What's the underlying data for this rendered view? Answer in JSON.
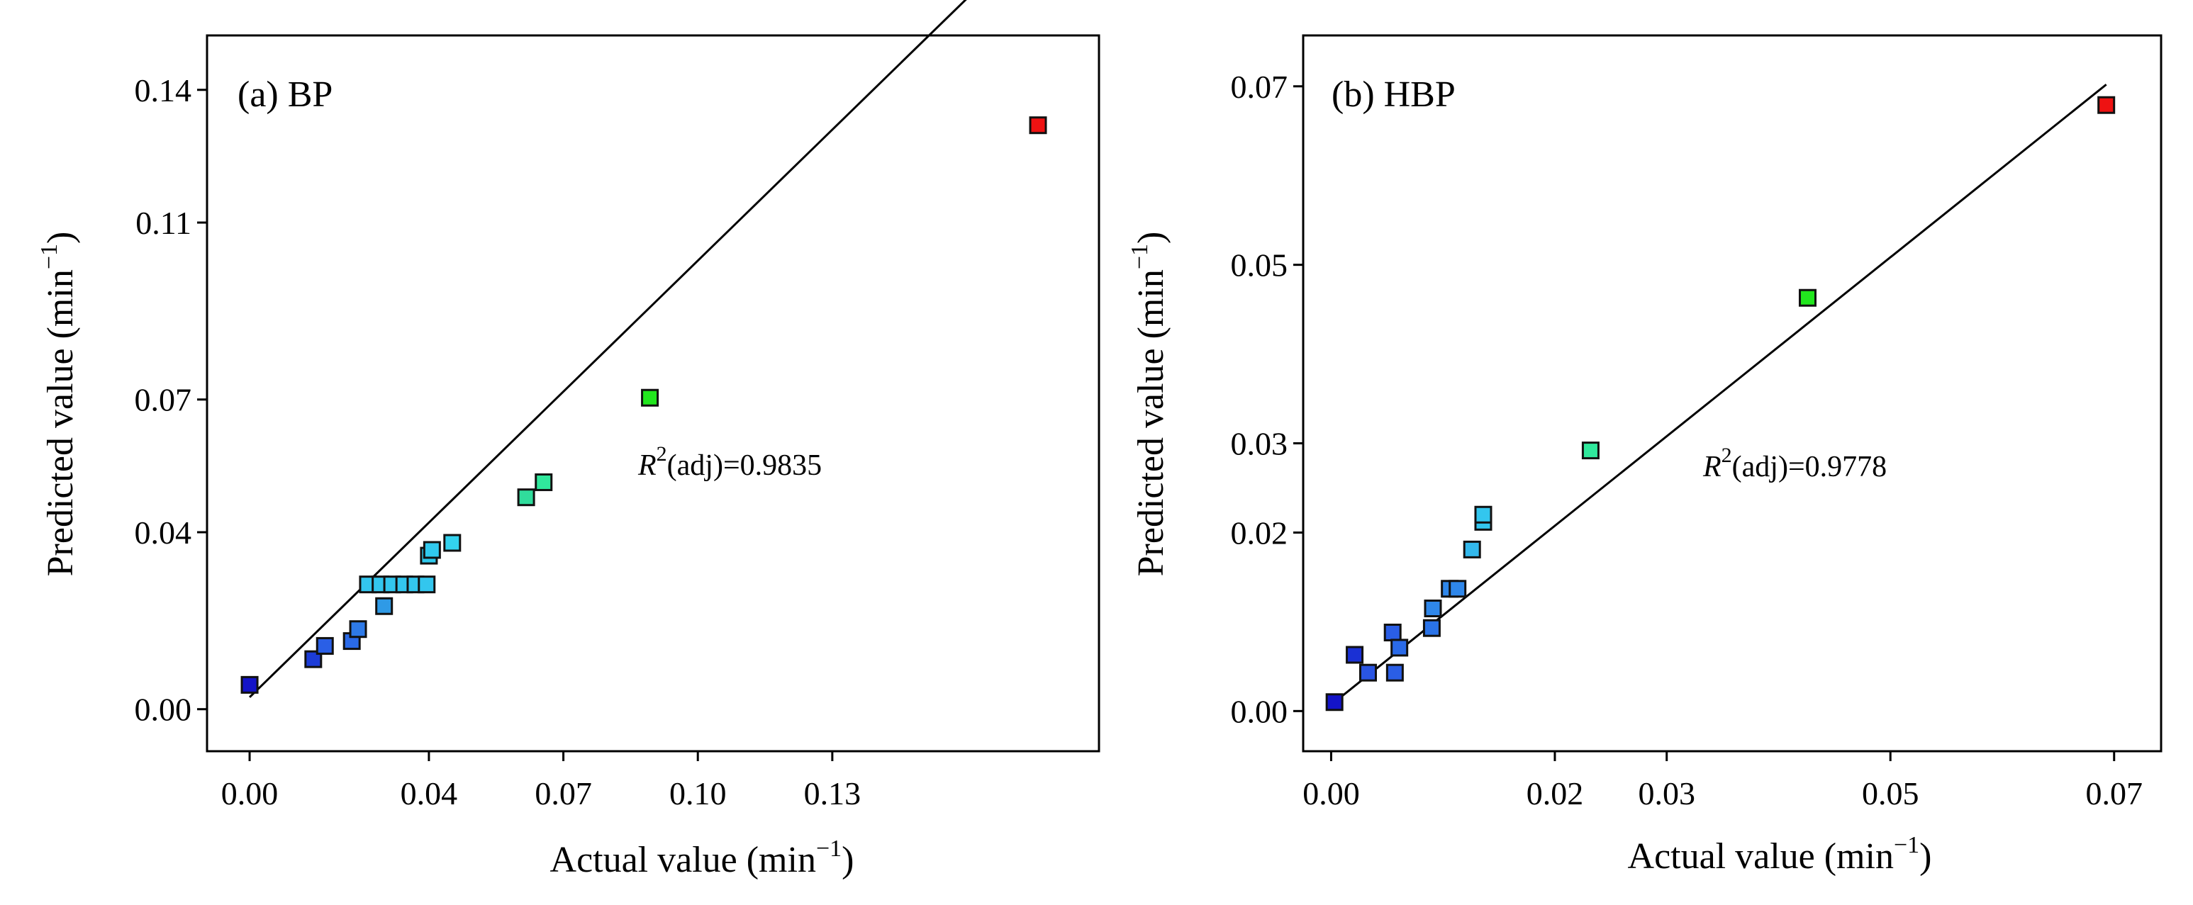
{
  "chart_data": [
    {
      "type": "scatter",
      "title": "(a) BP",
      "xlabel": "Actual value (min",
      "xlabel_sup": "−1",
      "xlabel_suffix": ")",
      "ylabel": "Predicted value (min",
      "ylabel_sup": "−1",
      "ylabel_suffix": ")",
      "x_ticks": [
        0.0,
        0.04,
        0.07,
        0.1,
        0.13
      ],
      "x_tick_labels": [
        "0.00",
        "0.04",
        "0.07",
        "0.10",
        "0.13"
      ],
      "y_ticks": [
        0.0,
        0.04,
        0.07,
        0.11,
        0.14
      ],
      "y_tick_labels": [
        "0.00",
        "0.04",
        "0.07",
        "0.11",
        "0.14"
      ],
      "xlim": [
        -0.0095,
        0.1895
      ],
      "ylim": [
        -0.0095,
        0.1523
      ],
      "annotation": {
        "r": "R",
        "sup": "2",
        "rest": "(adj)=0.9835"
      },
      "fit_line": [
        [
          0.0,
          0.0027
        ],
        [
          0.1759,
          0.1763
        ]
      ],
      "points": [
        {
          "x": 0.0,
          "y": 0.0055,
          "color": "#1414c8"
        },
        {
          "x": 0.0142,
          "y": 0.0113,
          "color": "#1c3cd8"
        },
        {
          "x": 0.0168,
          "y": 0.0143,
          "color": "#2a5fe6"
        },
        {
          "x": 0.0228,
          "y": 0.0154,
          "color": "#2a6ae8"
        },
        {
          "x": 0.0242,
          "y": 0.0181,
          "color": "#2e7ae8"
        },
        {
          "x": 0.0264,
          "y": 0.0282,
          "color": "#33c6ee"
        },
        {
          "x": 0.0292,
          "y": 0.0282,
          "color": "#33c6ee"
        },
        {
          "x": 0.03,
          "y": 0.0233,
          "color": "#2f9ae6"
        },
        {
          "x": 0.0318,
          "y": 0.0282,
          "color": "#33c6ee"
        },
        {
          "x": 0.0345,
          "y": 0.0282,
          "color": "#33c6ee"
        },
        {
          "x": 0.037,
          "y": 0.0282,
          "color": "#33c6ee"
        },
        {
          "x": 0.0395,
          "y": 0.0282,
          "color": "#33c6ee"
        },
        {
          "x": 0.04,
          "y": 0.0347,
          "color": "#2fc8ec"
        },
        {
          "x": 0.0407,
          "y": 0.036,
          "color": "#30c9ee"
        },
        {
          "x": 0.0452,
          "y": 0.0376,
          "color": "#33d2ee"
        },
        {
          "x": 0.0617,
          "y": 0.0479,
          "color": "#30dc9c"
        },
        {
          "x": 0.0656,
          "y": 0.0513,
          "color": "#30e89c"
        },
        {
          "x": 0.0893,
          "y": 0.0704,
          "color": "#22e61e"
        },
        {
          "x": 0.1759,
          "y": 0.132,
          "color": "#ee1212"
        }
      ]
    },
    {
      "type": "scatter",
      "title": "(b) HBP",
      "xlabel": "Actual value (min",
      "xlabel_sup": "−1",
      "xlabel_suffix": ")",
      "ylabel": "Predicted value (min",
      "ylabel_sup": "−1",
      "ylabel_suffix": ")",
      "x_ticks": [
        0.0,
        0.02,
        0.03,
        0.05,
        0.07
      ],
      "x_tick_labels": [
        "0.00",
        "0.02",
        "0.03",
        "0.05",
        "0.07"
      ],
      "y_ticks": [
        0.0,
        0.02,
        0.03,
        0.05,
        0.07
      ],
      "y_tick_labels": [
        "0.00",
        "0.02",
        "0.03",
        "0.05",
        "0.07"
      ],
      "xlim": [
        -0.0025,
        0.0742
      ],
      "ylim": [
        -0.0045,
        0.0757
      ],
      "annotation": {
        "r": "R",
        "sup": "2",
        "rest": "(adj)=0.9778"
      },
      "fit_line": [
        [
          0.0,
          0.0007
        ],
        [
          0.0693,
          0.0702
        ]
      ],
      "points": [
        {
          "x": 0.0003,
          "y": 0.001,
          "color": "#1414c8"
        },
        {
          "x": 0.0021,
          "y": 0.0063,
          "color": "#1a30d4"
        },
        {
          "x": 0.0033,
          "y": 0.0043,
          "color": "#2a55e2"
        },
        {
          "x": 0.0055,
          "y": 0.0088,
          "color": "#2a5ee6"
        },
        {
          "x": 0.0057,
          "y": 0.0043,
          "color": "#2a5ee6"
        },
        {
          "x": 0.0061,
          "y": 0.0071,
          "color": "#2a6ae8"
        },
        {
          "x": 0.009,
          "y": 0.0093,
          "color": "#2a73e8"
        },
        {
          "x": 0.0091,
          "y": 0.0115,
          "color": "#2f87ea"
        },
        {
          "x": 0.0106,
          "y": 0.0137,
          "color": "#2f87ea"
        },
        {
          "x": 0.0113,
          "y": 0.0137,
          "color": "#2f87ea"
        },
        {
          "x": 0.0126,
          "y": 0.0181,
          "color": "#33b8ec"
        },
        {
          "x": 0.0136,
          "y": 0.0212,
          "color": "#33c6ee"
        },
        {
          "x": 0.0136,
          "y": 0.022,
          "color": "#33c6ee"
        },
        {
          "x": 0.0232,
          "y": 0.0292,
          "color": "#30e89c"
        },
        {
          "x": 0.0426,
          "y": 0.0463,
          "color": "#22e61e"
        },
        {
          "x": 0.0693,
          "y": 0.0679,
          "color": "#ee1212"
        }
      ]
    }
  ]
}
